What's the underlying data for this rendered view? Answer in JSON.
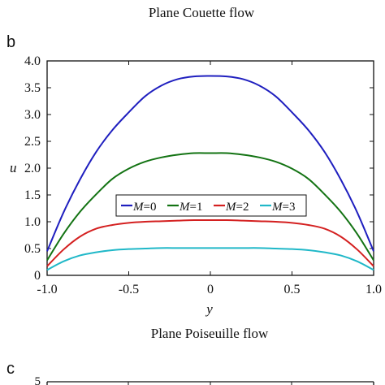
{
  "captions": {
    "top_title": "Plane Couette flow",
    "bottom_title": "Plane Poiseuille flow"
  },
  "panels": {
    "b_label": "b",
    "c_label": "c"
  },
  "chart_data": [
    {
      "panel": "b",
      "type": "line",
      "xlabel": "y",
      "ylabel": "u",
      "xlim": [
        -1.0,
        1.0
      ],
      "ylim": [
        0,
        4.0
      ],
      "x_ticks": [
        -1.0,
        -0.5,
        0,
        0.5,
        1.0
      ],
      "x_tick_labels": [
        "-1.0",
        "-0.5",
        "0",
        "0.5",
        "1.0"
      ],
      "y_ticks": [
        0,
        0.5,
        1.0,
        1.5,
        2.0,
        2.5,
        3.0,
        3.5,
        4.0
      ],
      "y_tick_labels": [
        "0",
        "0.5",
        "1.0",
        "1.5",
        "2.0",
        "2.5",
        "3.0",
        "3.5",
        "4.0"
      ],
      "grid": false,
      "legend_position": "center",
      "x": [
        -1.0,
        -0.9,
        -0.8,
        -0.7,
        -0.6,
        -0.5,
        -0.4,
        -0.3,
        -0.2,
        -0.1,
        0.0,
        0.1,
        0.2,
        0.3,
        0.4,
        0.5,
        0.6,
        0.7,
        0.8,
        0.9,
        1.0
      ],
      "series": [
        {
          "name": "M=0",
          "var": "M",
          "val": "=0",
          "color": "#1f1fbf",
          "values": [
            0.45,
            1.17,
            1.78,
            2.3,
            2.71,
            3.04,
            3.34,
            3.54,
            3.66,
            3.71,
            3.72,
            3.71,
            3.66,
            3.54,
            3.34,
            3.04,
            2.71,
            2.3,
            1.78,
            1.17,
            0.45
          ]
        },
        {
          "name": "M=1",
          "var": "M",
          "val": "=1",
          "color": "#137313",
          "values": [
            0.28,
            0.77,
            1.18,
            1.51,
            1.8,
            1.99,
            2.12,
            2.2,
            2.25,
            2.28,
            2.28,
            2.28,
            2.25,
            2.2,
            2.12,
            1.99,
            1.8,
            1.51,
            1.18,
            0.77,
            0.28
          ]
        },
        {
          "name": "M=2",
          "var": "M",
          "val": "=2",
          "color": "#d42020",
          "values": [
            0.17,
            0.48,
            0.72,
            0.87,
            0.94,
            0.98,
            1.0,
            1.01,
            1.02,
            1.03,
            1.03,
            1.03,
            1.02,
            1.01,
            1.0,
            0.98,
            0.94,
            0.87,
            0.72,
            0.48,
            0.17
          ]
        },
        {
          "name": "M=3",
          "var": "M",
          "val": "=3",
          "color": "#20b8c8",
          "values": [
            0.1,
            0.26,
            0.37,
            0.43,
            0.47,
            0.49,
            0.5,
            0.51,
            0.51,
            0.51,
            0.51,
            0.51,
            0.51,
            0.51,
            0.5,
            0.49,
            0.47,
            0.43,
            0.37,
            0.26,
            0.1
          ]
        }
      ]
    },
    {
      "panel": "c",
      "type": "line",
      "y_tick_labels": [
        "5"
      ],
      "note_partial": true
    }
  ]
}
